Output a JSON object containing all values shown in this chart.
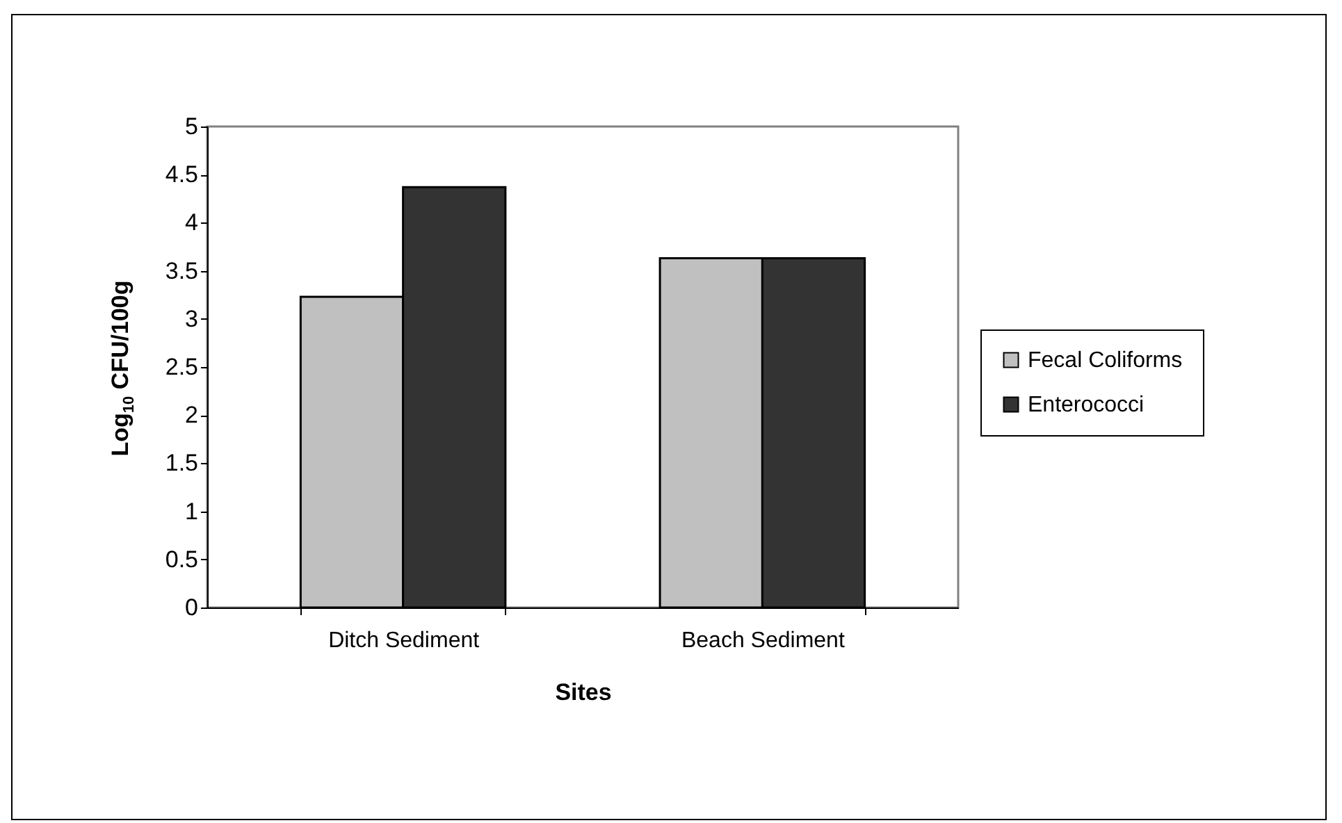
{
  "chart_data": {
    "type": "bar",
    "xlabel": "Sites",
    "ylabel": "Log$_{10}$ CFU/100g",
    "categories": [
      "Ditch Sediment",
      "Beach Sediment"
    ],
    "series": [
      {
        "name": "Fecal Coliforms",
        "color": "#c0c0c0",
        "values": [
          3.23,
          3.63
        ]
      },
      {
        "name": "Enterococci",
        "color": "#333333",
        "values": [
          4.37,
          3.63
        ]
      }
    ],
    "ylim": [
      0,
      5
    ],
    "yticks": [
      0,
      0.5,
      1,
      1.5,
      2,
      2.5,
      3,
      3.5,
      4,
      4.5,
      5
    ],
    "grid": false,
    "legend": "right"
  }
}
